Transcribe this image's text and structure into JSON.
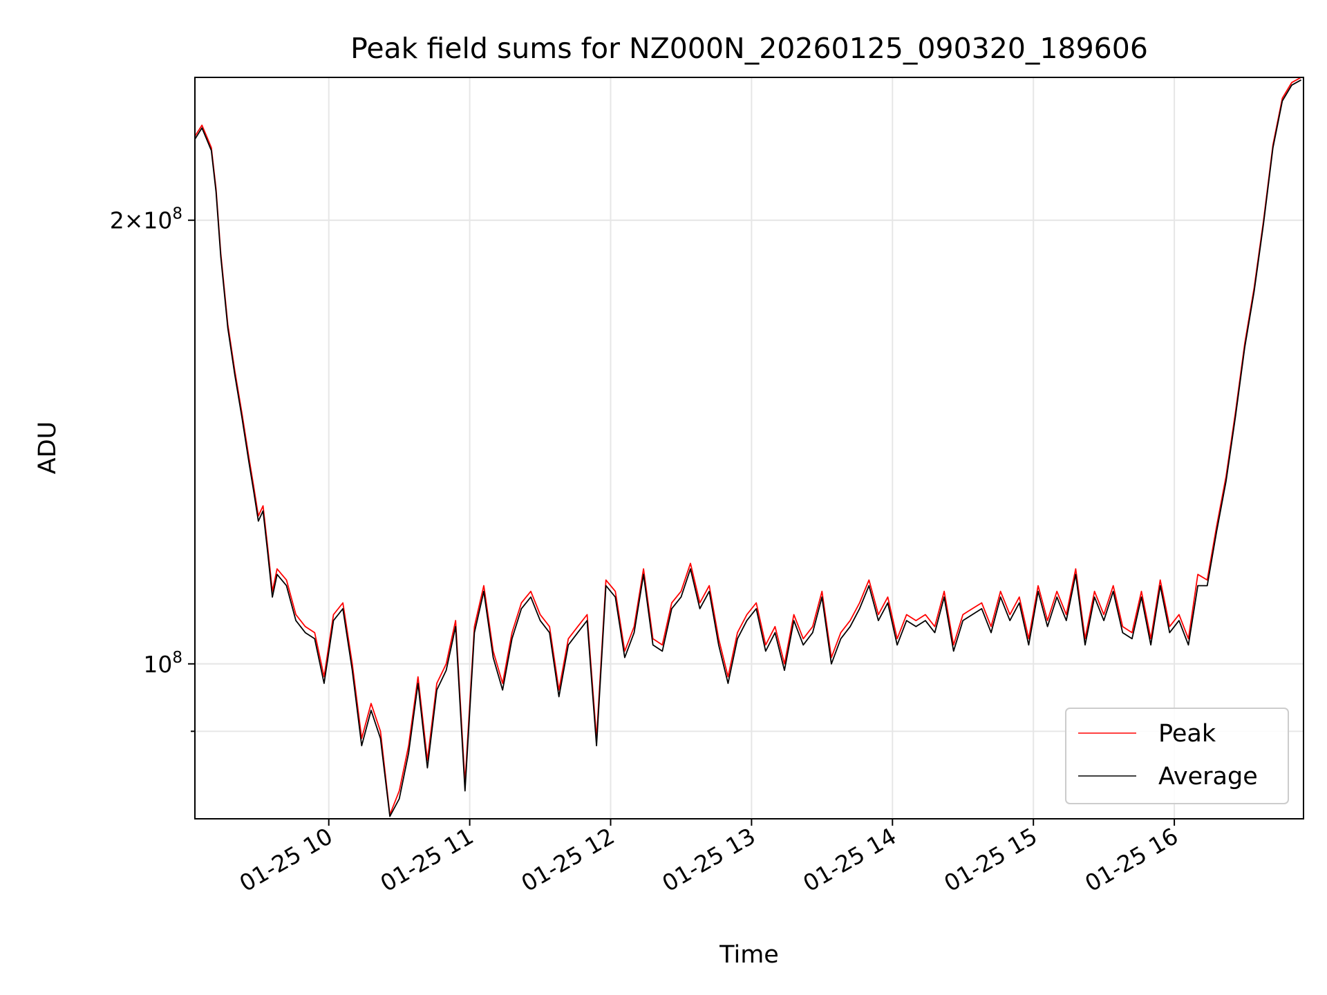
{
  "chart_data": {
    "type": "line",
    "title": "Peak field sums for NZ000N_20260125_090320_189606",
    "xlabel": "Time",
    "ylabel": "ADU",
    "y_scale": "log",
    "xlim": [
      "2026-01-25 09:03",
      "2026-01-25 16:55"
    ],
    "ylim": [
      78500000,
      250000000
    ],
    "x_ticks": [
      "01-25 10",
      "01-25 11",
      "01-25 12",
      "01-25 13",
      "01-25 14",
      "01-25 15",
      "01-25 16"
    ],
    "y_ticks": [
      {
        "value": 200000000,
        "mantissa": "2",
        "exponent": "8"
      },
      {
        "value": 100000000,
        "mantissa": "",
        "exponent": "8"
      }
    ],
    "y_minor_ticks": [
      90000000
    ],
    "grid": true,
    "legend_position": "lower-right",
    "series": [
      {
        "name": "Peak",
        "color": "#ff0000",
        "x": [
          "09:03",
          "09:06",
          "09:08",
          "09:10",
          "09:12",
          "09:14",
          "09:17",
          "09:20",
          "09:23",
          "09:26",
          "09:28",
          "09:30",
          "09:32",
          "09:34",
          "09:36",
          "09:38",
          "09:42",
          "09:46",
          "09:50",
          "09:54",
          "09:58",
          "10:02",
          "10:06",
          "10:10",
          "10:14",
          "10:18",
          "10:22",
          "10:26",
          "10:30",
          "10:34",
          "10:38",
          "10:42",
          "10:46",
          "10:50",
          "10:54",
          "10:58",
          "11:02",
          "11:06",
          "11:10",
          "11:14",
          "11:18",
          "11:22",
          "11:26",
          "11:30",
          "11:34",
          "11:38",
          "11:42",
          "11:46",
          "11:50",
          "11:54",
          "11:58",
          "12:02",
          "12:06",
          "12:10",
          "12:14",
          "12:18",
          "12:22",
          "12:26",
          "12:30",
          "12:34",
          "12:38",
          "12:42",
          "12:46",
          "12:50",
          "12:54",
          "12:58",
          "13:02",
          "13:06",
          "13:10",
          "13:14",
          "13:18",
          "13:22",
          "13:26",
          "13:30",
          "13:34",
          "13:38",
          "13:42",
          "13:46",
          "13:50",
          "13:54",
          "13:58",
          "14:02",
          "14:06",
          "14:10",
          "14:14",
          "14:18",
          "14:22",
          "14:26",
          "14:30",
          "14:34",
          "14:38",
          "14:42",
          "14:46",
          "14:50",
          "14:54",
          "14:58",
          "15:02",
          "15:06",
          "15:10",
          "15:14",
          "15:18",
          "15:22",
          "15:26",
          "15:30",
          "15:34",
          "15:38",
          "15:42",
          "15:46",
          "15:50",
          "15:54",
          "15:58",
          "16:02",
          "16:06",
          "16:10",
          "16:14",
          "16:18",
          "16:22",
          "16:26",
          "16:30",
          "16:34",
          "16:38",
          "16:42",
          "16:46",
          "16:50",
          "16:54"
        ],
        "values": [
          228000000,
          232000000,
          228000000,
          224000000,
          210000000,
          190000000,
          170000000,
          158000000,
          148000000,
          138000000,
          132000000,
          126000000,
          128000000,
          120000000,
          112000000,
          116000000,
          114000000,
          108000000,
          106000000,
          105000000,
          98000000,
          108000000,
          110000000,
          100000000,
          89000000,
          94000000,
          90000000,
          79000000,
          82000000,
          88000000,
          98000000,
          86000000,
          97000000,
          100000000,
          107000000,
          83000000,
          106000000,
          113000000,
          102000000,
          97000000,
          105000000,
          110000000,
          112000000,
          108000000,
          106000000,
          96000000,
          104000000,
          106000000,
          108000000,
          89000000,
          114000000,
          112000000,
          102000000,
          106000000,
          116000000,
          104000000,
          103000000,
          110000000,
          112000000,
          117000000,
          110000000,
          113000000,
          104000000,
          98000000,
          105000000,
          108000000,
          110000000,
          103000000,
          106000000,
          100000000,
          108000000,
          104000000,
          106000000,
          112000000,
          101000000,
          105000000,
          107000000,
          110000000,
          114000000,
          108000000,
          111000000,
          104000000,
          108000000,
          107000000,
          108000000,
          106000000,
          112000000,
          103000000,
          108000000,
          109000000,
          110000000,
          106000000,
          112000000,
          108000000,
          111000000,
          104000000,
          113000000,
          107000000,
          112000000,
          108000000,
          116000000,
          104000000,
          112000000,
          108000000,
          113000000,
          106000000,
          105000000,
          112000000,
          104000000,
          114000000,
          106000000,
          108000000,
          104000000,
          115000000,
          114000000,
          124000000,
          134000000,
          148000000,
          165000000,
          180000000,
          200000000,
          225000000,
          242000000,
          248000000,
          250000000
        ]
      },
      {
        "name": "Average",
        "color": "#000000",
        "x": [
          "09:03",
          "09:06",
          "09:08",
          "09:10",
          "09:12",
          "09:14",
          "09:17",
          "09:20",
          "09:23",
          "09:26",
          "09:28",
          "09:30",
          "09:32",
          "09:34",
          "09:36",
          "09:38",
          "09:42",
          "09:46",
          "09:50",
          "09:54",
          "09:58",
          "10:02",
          "10:06",
          "10:10",
          "10:14",
          "10:18",
          "10:22",
          "10:26",
          "10:30",
          "10:34",
          "10:38",
          "10:42",
          "10:46",
          "10:50",
          "10:54",
          "10:58",
          "11:02",
          "11:06",
          "11:10",
          "11:14",
          "11:18",
          "11:22",
          "11:26",
          "11:30",
          "11:34",
          "11:38",
          "11:42",
          "11:46",
          "11:50",
          "11:54",
          "11:58",
          "12:02",
          "12:06",
          "12:10",
          "12:14",
          "12:18",
          "12:22",
          "12:26",
          "12:30",
          "12:34",
          "12:38",
          "12:42",
          "12:46",
          "12:50",
          "12:54",
          "12:58",
          "13:02",
          "13:06",
          "13:10",
          "13:14",
          "13:18",
          "13:22",
          "13:26",
          "13:30",
          "13:34",
          "13:38",
          "13:42",
          "13:46",
          "13:50",
          "13:54",
          "13:58",
          "14:02",
          "14:06",
          "14:10",
          "14:14",
          "14:18",
          "14:22",
          "14:26",
          "14:30",
          "14:34",
          "14:38",
          "14:42",
          "14:46",
          "14:50",
          "14:54",
          "14:58",
          "15:02",
          "15:06",
          "15:10",
          "15:14",
          "15:18",
          "15:22",
          "15:26",
          "15:30",
          "15:34",
          "15:38",
          "15:42",
          "15:46",
          "15:50",
          "15:54",
          "15:58",
          "16:02",
          "16:06",
          "16:10",
          "16:14",
          "16:18",
          "16:22",
          "16:26",
          "16:30",
          "16:34",
          "16:38",
          "16:42",
          "16:46",
          "16:50",
          "16:54"
        ],
        "values": [
          227000000,
          231000000,
          227000000,
          223000000,
          209000000,
          189000000,
          169000000,
          157000000,
          147000000,
          137000000,
          131000000,
          125000000,
          127000000,
          119000000,
          111000000,
          115000000,
          113000000,
          107000000,
          105000000,
          104000000,
          97000000,
          107000000,
          109000000,
          99000000,
          88000000,
          93000000,
          89000000,
          78800000,
          81000000,
          87000000,
          97000000,
          85000000,
          96000000,
          99000000,
          106000000,
          82000000,
          105000000,
          112000000,
          101000000,
          96000000,
          104000000,
          109000000,
          111000000,
          107000000,
          105000000,
          95000000,
          103000000,
          105000000,
          107000000,
          88000000,
          113000000,
          111000000,
          101000000,
          105000000,
          115000000,
          103000000,
          102000000,
          109000000,
          111000000,
          116000000,
          109000000,
          112000000,
          103000000,
          97000000,
          104000000,
          107000000,
          109000000,
          102000000,
          105000000,
          99000000,
          107000000,
          103000000,
          105000000,
          111000000,
          100000000,
          104000000,
          106000000,
          109000000,
          113000000,
          107000000,
          110000000,
          103000000,
          107000000,
          106000000,
          107000000,
          105000000,
          111000000,
          102000000,
          107000000,
          108000000,
          109000000,
          105000000,
          111000000,
          107000000,
          110000000,
          103000000,
          112000000,
          106000000,
          111000000,
          107000000,
          115000000,
          103000000,
          111000000,
          107000000,
          112000000,
          105000000,
          104000000,
          111000000,
          103000000,
          113000000,
          105000000,
          107000000,
          103000000,
          113000000,
          113000000,
          123000000,
          133000000,
          147000000,
          164000000,
          179000000,
          199000000,
          224000000,
          241000000,
          247000000,
          249000000
        ]
      }
    ]
  }
}
